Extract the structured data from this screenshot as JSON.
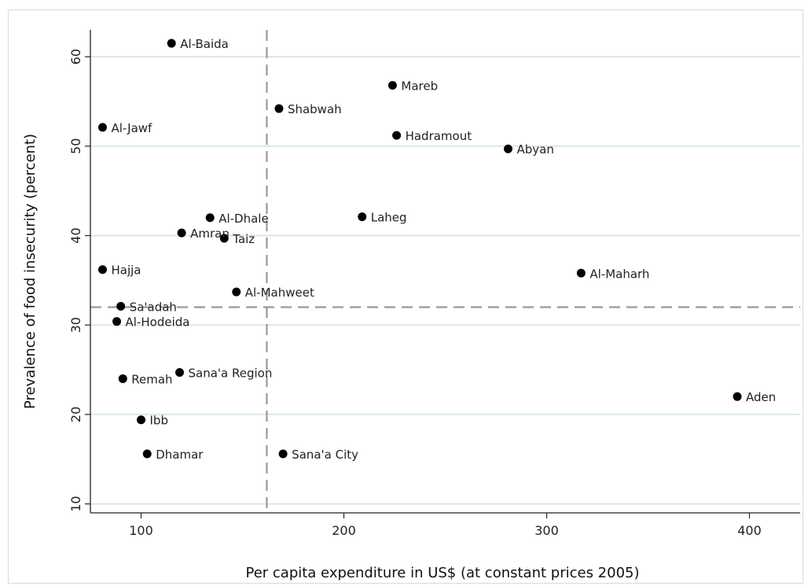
{
  "chart_data": {
    "type": "scatter",
    "title": "",
    "xlabel": "Per capita expenditure in US$ (at constant prices 2005)",
    "ylabel": "Prevalence of food insecurity (percent)",
    "xlim": [
      75,
      425
    ],
    "ylim": [
      9,
      63
    ],
    "xticks": [
      100,
      200,
      300,
      400
    ],
    "yticks": [
      10,
      20,
      30,
      40,
      50,
      60
    ],
    "grid": "horizontal",
    "reference_lines": {
      "x": 162,
      "y": 32
    },
    "marker_color": "#000000",
    "gridline_color": "#d7e8ea",
    "refline_color": "#999999",
    "points": [
      {
        "label": "Al-Baida",
        "x": 115,
        "y": 61.5
      },
      {
        "label": "Mareb",
        "x": 224,
        "y": 56.8
      },
      {
        "label": "Shabwah",
        "x": 168,
        "y": 54.2
      },
      {
        "label": "Al-Jawf",
        "x": 81,
        "y": 52.1
      },
      {
        "label": "Hadramout",
        "x": 226,
        "y": 51.2
      },
      {
        "label": "Abyan",
        "x": 281,
        "y": 49.7
      },
      {
        "label": "Laheg",
        "x": 209,
        "y": 42.1
      },
      {
        "label": "Al-Dhale",
        "x": 134,
        "y": 42.0
      },
      {
        "label": "Amran",
        "x": 120,
        "y": 40.3
      },
      {
        "label": "Taiz",
        "x": 141,
        "y": 39.7
      },
      {
        "label": "Hajja",
        "x": 81,
        "y": 36.2
      },
      {
        "label": "Al-Maharh",
        "x": 317,
        "y": 35.8
      },
      {
        "label": "Al-Mahweet",
        "x": 147,
        "y": 33.7
      },
      {
        "label": "Sa'adah",
        "x": 90,
        "y": 32.1
      },
      {
        "label": "Al-Hodeida",
        "x": 88,
        "y": 30.4
      },
      {
        "label": "Sana'a Region",
        "x": 119,
        "y": 24.7
      },
      {
        "label": "Remah",
        "x": 91,
        "y": 24.0
      },
      {
        "label": "Aden",
        "x": 394,
        "y": 22.0
      },
      {
        "label": "Ibb",
        "x": 100,
        "y": 19.4
      },
      {
        "label": "Dhamar",
        "x": 103,
        "y": 15.6
      },
      {
        "label": "Sana'a City",
        "x": 170,
        "y": 15.6
      }
    ]
  }
}
